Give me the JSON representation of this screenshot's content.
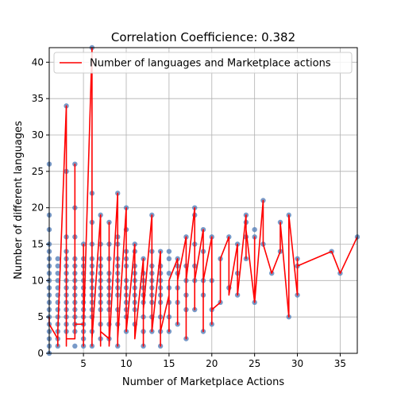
{
  "chart_data": {
    "type": "scatter",
    "title": "Correlation Coefficience: 0.382",
    "xlabel": "Number of Marketplace Actions",
    "ylabel": "Number of different languages",
    "xlim": [
      1,
      37
    ],
    "ylim": [
      0,
      42
    ],
    "xticks": [
      5,
      10,
      15,
      20,
      25,
      30,
      35
    ],
    "yticks": [
      0,
      5,
      10,
      15,
      20,
      25,
      30,
      35,
      40
    ],
    "grid": true,
    "legend": {
      "placement": "top-left",
      "label": "Number of languages and Marketplace actions"
    },
    "colors": {
      "points": "#4c78b5",
      "line": "#ff0000",
      "grid": "#b0b0b0"
    },
    "series": [
      {
        "name": "Number of languages and Marketplace actions",
        "x": [
          1,
          1,
          2,
          2,
          2,
          3,
          3,
          3,
          3,
          4,
          4,
          4,
          4,
          4,
          4,
          5,
          5,
          5,
          5,
          6,
          6,
          6,
          6,
          6,
          6,
          6,
          7,
          7,
          7,
          7,
          8,
          8,
          8,
          9,
          9,
          9,
          9,
          10,
          10,
          10,
          10,
          10,
          11,
          11,
          11,
          12,
          12,
          12,
          13,
          13,
          13,
          13,
          14,
          14,
          14,
          14,
          15,
          15,
          15,
          16,
          16,
          16,
          17,
          17,
          17,
          18,
          18,
          18,
          18,
          19,
          19,
          19,
          19,
          20,
          20,
          20,
          21,
          21,
          22,
          22,
          23,
          23,
          24,
          24,
          24,
          25,
          25,
          25,
          26,
          26,
          27,
          28,
          28,
          29,
          29,
          30,
          30,
          30,
          34,
          35,
          37
        ],
        "y": [
          5,
          4,
          2,
          1,
          3,
          34,
          1,
          25,
          2,
          2,
          26,
          4,
          20,
          3,
          4,
          4,
          15,
          1,
          3,
          42,
          3,
          22,
          2,
          5,
          1,
          2,
          19,
          1,
          12,
          3,
          2,
          18,
          1,
          22,
          1,
          3,
          2,
          20,
          6,
          17,
          9,
          3,
          15,
          5,
          2,
          13,
          1,
          6,
          19,
          4,
          12,
          3,
          14,
          1,
          14,
          3,
          8,
          3,
          10,
          13,
          4,
          10,
          16,
          2,
          10,
          20,
          6,
          19,
          10,
          17,
          3,
          14,
          10,
          16,
          4,
          6,
          7,
          13,
          16,
          8,
          15,
          8,
          19,
          13,
          17,
          7,
          16,
          7,
          21,
          15,
          11,
          14,
          18,
          5,
          19,
          8,
          13,
          12,
          14,
          11,
          16
        ]
      }
    ],
    "scatter_points": {
      "x": [
        1,
        1,
        1,
        1,
        1,
        1,
        1,
        1,
        1,
        1,
        1,
        1,
        1,
        1,
        1,
        1,
        1,
        1,
        1,
        2,
        2,
        2,
        2,
        2,
        2,
        2,
        2,
        2,
        2,
        2,
        2,
        2,
        3,
        3,
        3,
        3,
        3,
        3,
        3,
        3,
        3,
        3,
        3,
        3,
        3,
        3,
        3,
        4,
        4,
        4,
        4,
        4,
        4,
        4,
        4,
        4,
        4,
        4,
        4,
        4,
        4,
        4,
        5,
        5,
        5,
        5,
        5,
        5,
        5,
        5,
        5,
        5,
        5,
        5,
        5,
        5,
        6,
        6,
        6,
        6,
        6,
        6,
        6,
        6,
        6,
        6,
        6,
        6,
        6,
        6,
        6,
        7,
        7,
        7,
        7,
        7,
        7,
        7,
        7,
        7,
        7,
        7,
        7,
        8,
        8,
        8,
        8,
        8,
        8,
        8,
        8,
        8,
        8,
        8,
        9,
        9,
        9,
        9,
        9,
        9,
        9,
        9,
        9,
        9,
        9,
        9,
        10,
        10,
        10,
        10,
        10,
        10,
        10,
        10,
        10,
        10,
        10,
        10,
        11,
        11,
        11,
        11,
        11,
        11,
        11,
        11,
        11,
        11,
        12,
        12,
        12,
        12,
        12,
        12,
        12,
        12,
        12,
        13,
        13,
        13,
        13,
        13,
        13,
        13,
        13,
        13,
        13,
        14,
        14,
        14,
        14,
        14,
        14,
        14,
        14,
        14,
        14,
        15,
        15,
        15,
        15,
        15,
        15,
        15,
        16,
        16,
        16,
        16,
        16,
        16,
        17,
        17,
        17,
        17,
        17,
        17,
        18,
        18,
        18,
        18,
        18,
        18,
        19,
        19,
        19,
        19,
        19,
        20,
        20,
        20,
        20,
        21,
        21,
        22,
        22,
        23,
        23,
        23,
        24,
        24,
        24,
        24,
        25,
        25,
        25,
        26,
        26,
        27,
        28,
        28,
        29,
        29,
        30,
        30,
        30,
        34,
        35,
        37
      ],
      "y": [
        26,
        19,
        17,
        15,
        14,
        13,
        12,
        11,
        10,
        9,
        8,
        7,
        6,
        5,
        4,
        3,
        2,
        1,
        0,
        13,
        12,
        11,
        10,
        9,
        8,
        7,
        6,
        5,
        4,
        3,
        2,
        1,
        34,
        25,
        16,
        14,
        13,
        12,
        11,
        10,
        9,
        8,
        7,
        6,
        5,
        4,
        3,
        26,
        20,
        16,
        13,
        12,
        11,
        10,
        9,
        8,
        7,
        6,
        5,
        4,
        3,
        1,
        15,
        13,
        12,
        11,
        10,
        9,
        8,
        7,
        6,
        5,
        4,
        3,
        2,
        1,
        42,
        22,
        18,
        15,
        13,
        12,
        11,
        10,
        9,
        8,
        7,
        6,
        5,
        3,
        1,
        19,
        15,
        13,
        12,
        11,
        10,
        9,
        8,
        7,
        6,
        4,
        2,
        18,
        15,
        13,
        11,
        10,
        9,
        8,
        7,
        6,
        4,
        2,
        22,
        16,
        15,
        13,
        12,
        11,
        10,
        9,
        8,
        6,
        4,
        1,
        20,
        17,
        14,
        13,
        12,
        10,
        9,
        8,
        7,
        6,
        5,
        3,
        15,
        14,
        12,
        11,
        10,
        9,
        8,
        7,
        6,
        4,
        13,
        11,
        10,
        9,
        8,
        7,
        5,
        3,
        1,
        19,
        14,
        12,
        11,
        10,
        9,
        8,
        7,
        5,
        3,
        14,
        12,
        11,
        10,
        9,
        8,
        7,
        5,
        3,
        1,
        14,
        13,
        11,
        9,
        7,
        5,
        3,
        13,
        12,
        11,
        9,
        7,
        4,
        16,
        12,
        10,
        8,
        6,
        2,
        20,
        19,
        15,
        12,
        10,
        6,
        17,
        14,
        10,
        8,
        3,
        16,
        10,
        6,
        4,
        13,
        7,
        16,
        9,
        15,
        11,
        8,
        19,
        18,
        16,
        13,
        17,
        16,
        7,
        21,
        15,
        11,
        14,
        18,
        19,
        5,
        13,
        12,
        8,
        14,
        11,
        16
      ]
    }
  }
}
